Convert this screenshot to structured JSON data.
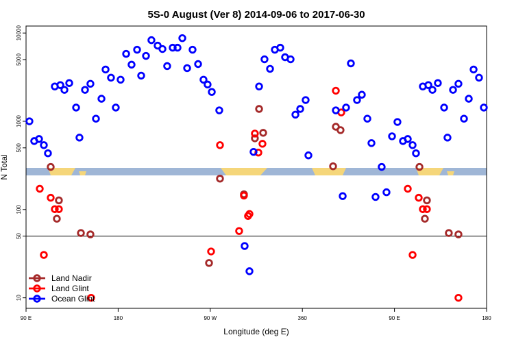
{
  "chart_data": {
    "type": "scatter",
    "title": "5S-0 August (Ver 8)   2014-09-06 to 2017-06-30",
    "x_label": "Longitude (deg E)",
    "y_label": "N Total",
    "log_y": true,
    "legend": "bottom-left",
    "hline": 50,
    "xlim": [
      90,
      540
    ],
    "xticks": [
      {
        "value": 90,
        "label": "90 E"
      },
      180,
      {
        "value": 270,
        "label": "90 W"
      },
      360,
      {
        "value": 450,
        "label": "90 E"
      },
      {
        "value": 540,
        "label": "180"
      }
    ],
    "ylim": [
      7.6,
      12000
    ],
    "yticks": [
      10,
      50,
      100,
      500,
      1000,
      5000,
      10000
    ],
    "series": [
      {
        "name": "Land Nadir",
        "color": "#a52a2a",
        "x": [
          114.1,
          120.1,
          122.1,
          143.6,
          152.9,
          268.8,
          279.5,
          302.9,
          313.6,
          317.7,
          321.7,
          390,
          392.7,
          397.3,
          474.4,
          479.7,
          481.7,
          503.1,
          512.5
        ],
        "values": [
          304,
          78.7,
          127,
          54.2,
          52.3,
          24.8,
          224,
          149,
          641,
          1380,
          740,
          309,
          867,
          794,
          304,
          78.7,
          127,
          54.2,
          52.3
        ]
      },
      {
        "name": "Land Glint",
        "color": "#ff0000",
        "x": [
          103.4,
          107.4,
          114.1,
          118.1,
          122.1,
          153.6,
          279.5,
          270.8,
          298.2,
          302.9,
          306.9,
          308.3,
          313.6,
          317,
          321,
          392.7,
          398,
          463,
          467.7,
          473.7,
          477.7,
          481.7,
          512.5
        ],
        "values": [
          172,
          30.6,
          136,
          101,
          101,
          10,
          537,
          33.5,
          57.1,
          144,
          84.5,
          89.1,
          726,
          442,
          556,
          2220,
          1260,
          172,
          30.6,
          136,
          101,
          101,
          10
        ]
      },
      {
        "name": "Ocean Glint",
        "color": "#0000ff",
        "x": [
          93.3,
          98,
          102.7,
          107.4,
          111.4,
          118.1,
          123.5,
          127.5,
          132.2,
          138.9,
          142.2,
          147.6,
          152.9,
          158.3,
          163.7,
          167.7,
          173,
          177.7,
          182.4,
          187.8,
          193.1,
          198.5,
          202.5,
          207.2,
          212.5,
          218.6,
          223.3,
          227.9,
          233.3,
          238,
          242.7,
          247.4,
          252.7,
          258.1,
          263.4,
          267.4,
          271.5,
          278.8,
          303.6,
          308.3,
          312.3,
          317.7,
          323,
          328.4,
          333.1,
          338.4,
          343.1,
          348.5,
          353.2,
          357.9,
          363.2,
          365.9,
          392.7,
          399.4,
          402.7,
          407.4,
          413.4,
          418.1,
          423.5,
          427.5,
          431.5,
          437.5,
          442.2,
          447.6,
          452.9,
          458.3,
          463,
          467.7,
          471,
          477.7,
          483.1,
          487.1,
          492.4,
          498.5,
          501.8,
          507.2,
          512.5,
          517.9,
          522.6,
          527.3,
          532.6,
          537.3
        ],
        "values": [
          1000,
          597,
          630,
          537,
          434,
          2480,
          2570,
          2270,
          2710,
          1430,
          653,
          2270,
          2660,
          1070,
          1800,
          3860,
          3120,
          1430,
          2960,
          5810,
          4380,
          6470,
          3290,
          5510,
          8300,
          7200,
          6590,
          4220,
          6820,
          6820,
          8750,
          4000,
          6470,
          4450,
          2960,
          2610,
          2150,
          1330,
          38.6,
          20,
          450,
          2480,
          5040,
          3930,
          6470,
          6820,
          5320,
          5040,
          1190,
          1380,
          1740,
          411,
          1330,
          142,
          1430,
          4530,
          1740,
          2000,
          1070,
          566,
          139,
          304,
          157,
          676,
          982,
          597,
          630,
          537,
          434,
          2480,
          2570,
          2270,
          2710,
          1430,
          653,
          2270,
          2660,
          1070,
          1800,
          3860,
          3120,
          1430
        ]
      }
    ]
  }
}
